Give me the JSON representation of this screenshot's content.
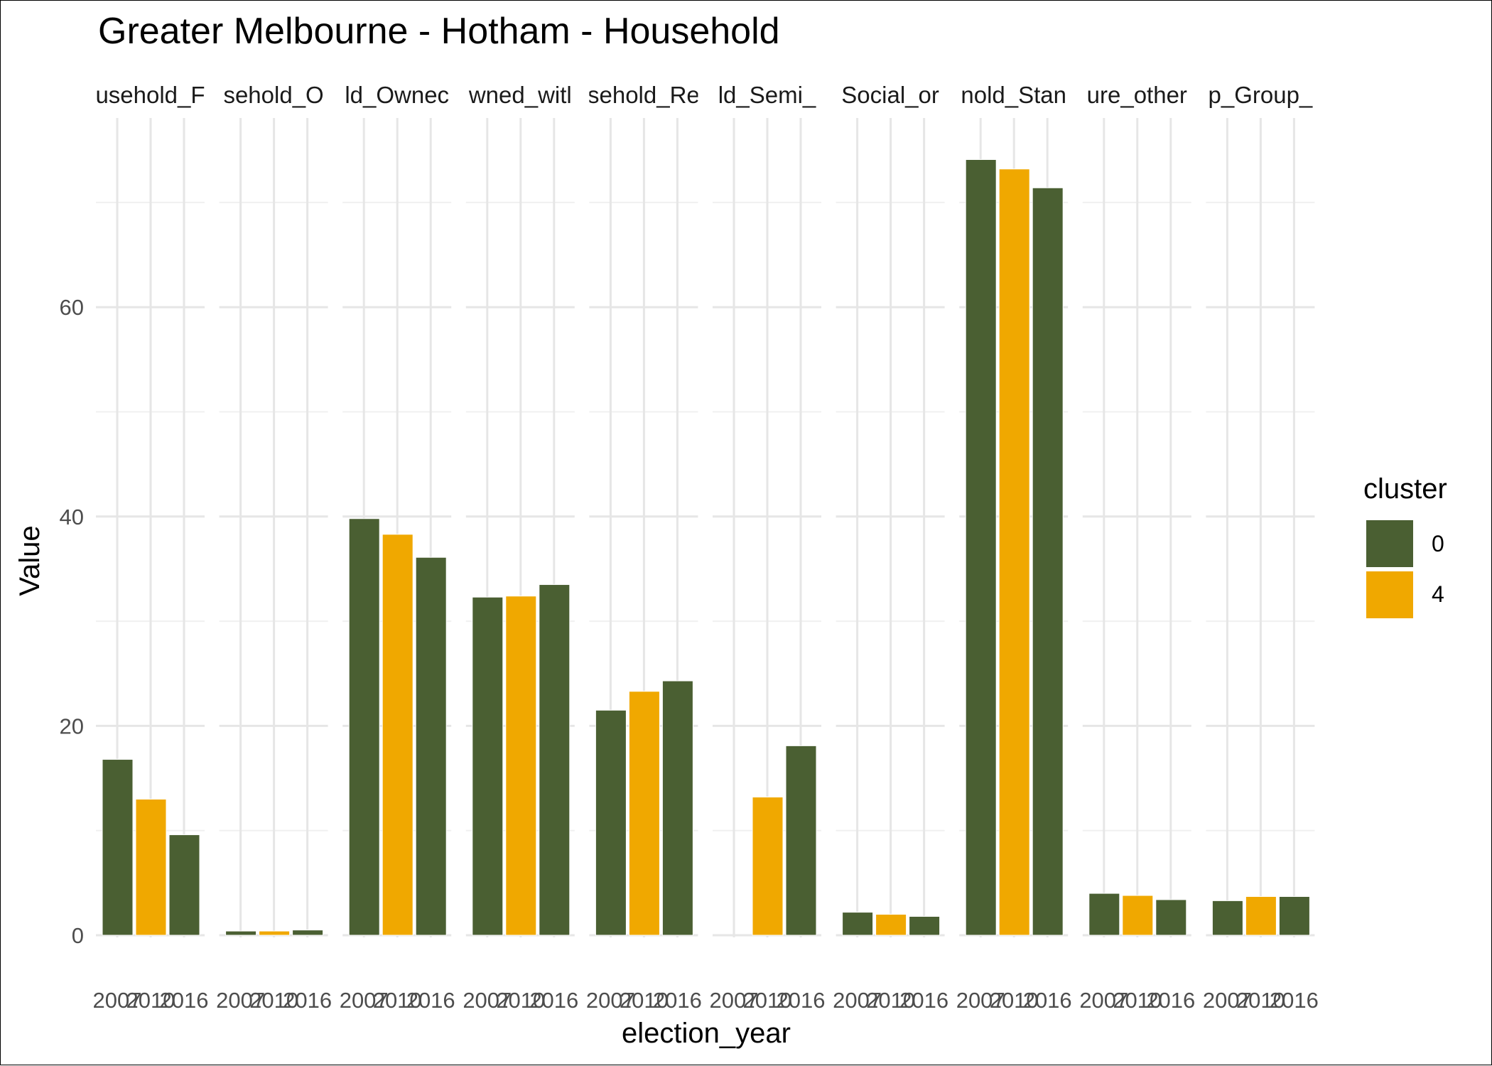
{
  "chart_data": {
    "type": "bar",
    "title": "Greater Melbourne - Hotham - Household",
    "xlabel": "election_year",
    "ylabel": "Value",
    "ylim": [
      0,
      78
    ],
    "yticks": [
      0,
      20,
      40,
      60
    ],
    "grid": true,
    "legend": {
      "title": "cluster",
      "placement": "right",
      "entries": [
        {
          "name": "0",
          "color": "#4a5f32"
        },
        {
          "name": "4",
          "color": "#f0a800"
        }
      ]
    },
    "categories": [
      "2007",
      "2010",
      "2016"
    ],
    "panels": [
      {
        "label": "usehold_F",
        "values": [
          16.8,
          13.0,
          9.6
        ],
        "clusters": [
          "0",
          "4",
          "0"
        ]
      },
      {
        "label": "sehold_O",
        "values": [
          0.4,
          0.4,
          0.5
        ],
        "clusters": [
          "0",
          "4",
          "0"
        ]
      },
      {
        "label": "ld_Ownec",
        "values": [
          39.8,
          38.3,
          36.1
        ],
        "clusters": [
          "0",
          "4",
          "0"
        ]
      },
      {
        "label": "wned_witl",
        "values": [
          32.3,
          32.4,
          33.5
        ],
        "clusters": [
          "0",
          "4",
          "0"
        ]
      },
      {
        "label": "sehold_Re",
        "values": [
          21.5,
          23.3,
          24.3
        ],
        "clusters": [
          "0",
          "4",
          "0"
        ]
      },
      {
        "label": "ld_Semi_",
        "values": [
          null,
          13.2,
          18.1
        ],
        "clusters": [
          "0",
          "4",
          "0"
        ]
      },
      {
        "label": "Social_or",
        "values": [
          2.2,
          2.0,
          1.8
        ],
        "clusters": [
          "0",
          "4",
          "0"
        ]
      },
      {
        "label": "nold_Stan",
        "values": [
          74.1,
          73.2,
          71.4
        ],
        "clusters": [
          "0",
          "4",
          "0"
        ]
      },
      {
        "label": "ure_other",
        "values": [
          4.0,
          3.8,
          3.4
        ],
        "clusters": [
          "0",
          "4",
          "0"
        ]
      },
      {
        "label": "p_Group_",
        "values": [
          3.3,
          3.7,
          3.7
        ],
        "clusters": [
          "0",
          "4",
          "0"
        ]
      }
    ]
  }
}
